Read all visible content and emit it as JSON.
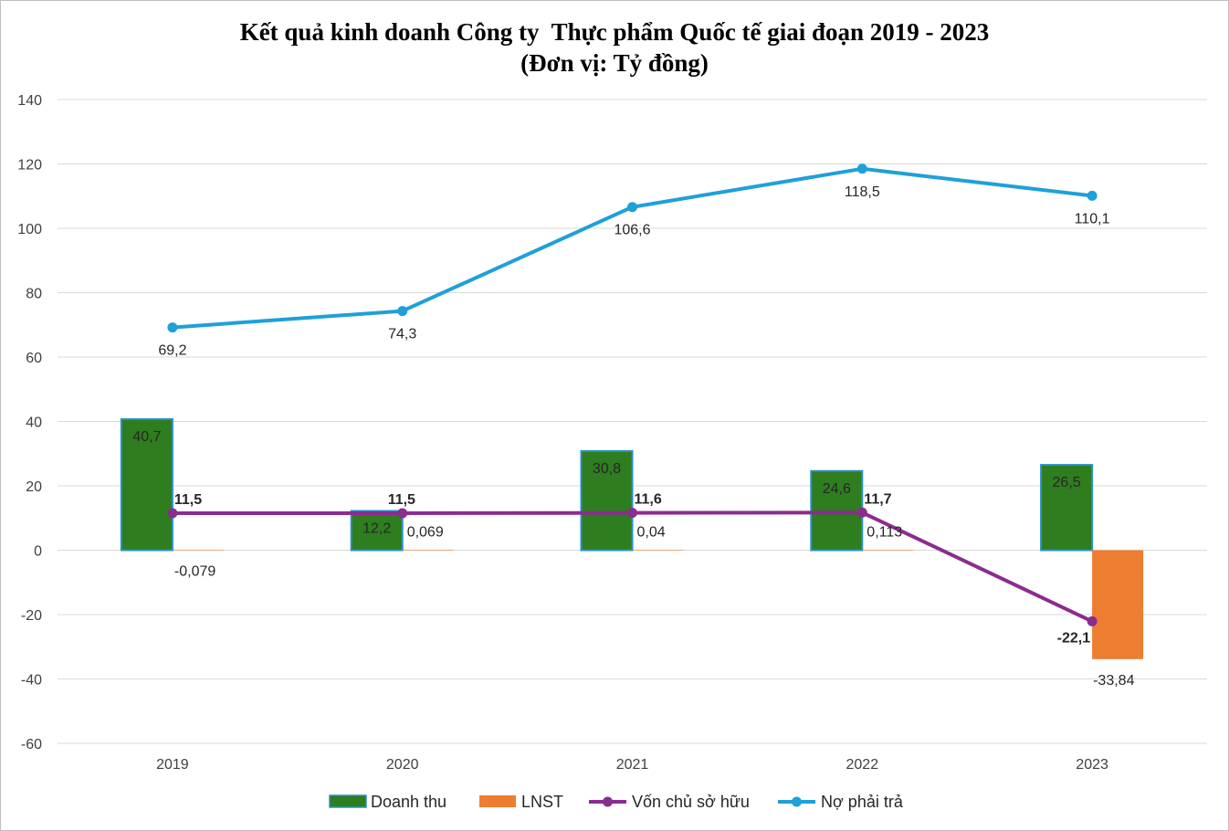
{
  "chart_data": {
    "type": "bar",
    "title": "Kết quả kinh doanh Công ty  Thực phẩm Quốc tế giai đoạn 2019 - 2023",
    "subtitle": "(Đơn vị: Tỷ đồng)",
    "categories": [
      "2019",
      "2020",
      "2021",
      "2022",
      "2023"
    ],
    "ylim": [
      -60,
      140
    ],
    "yticks": [
      -60,
      -40,
      -20,
      0,
      20,
      40,
      60,
      80,
      100,
      120,
      140
    ],
    "ytick_labels": [
      "-60",
      "-40",
      "-20",
      "0",
      "20",
      "40",
      "60",
      "80",
      "100",
      "120",
      "140"
    ],
    "grid": true,
    "legend_position": "bottom",
    "series": [
      {
        "name": "Doanh thu",
        "kind": "bar",
        "color": "#2e7d1f",
        "edge_color": "#2b8fc7",
        "values": [
          40.7,
          12.2,
          30.8,
          24.6,
          26.5
        ],
        "labels": [
          "40,7",
          "12,2",
          "30,8",
          "24,6",
          "26,5"
        ]
      },
      {
        "name": "LNST",
        "kind": "bar",
        "color": "#ed7d31",
        "values": [
          -0.079,
          0.069,
          0.04,
          0.113,
          -33.84
        ],
        "labels": [
          "-0,079",
          "0,069",
          "0,04",
          "0,113",
          "-33,84"
        ]
      },
      {
        "name": "Vốn chủ sở hữu",
        "kind": "line",
        "color": "#8b2c8f",
        "values": [
          11.5,
          11.5,
          11.6,
          11.7,
          -22.1
        ],
        "labels": [
          "11,5",
          "11,5",
          "11,6",
          "11,7",
          "-22,1"
        ]
      },
      {
        "name": "Nợ phải trả",
        "kind": "line",
        "color": "#1fa0d8",
        "values": [
          69.2,
          74.3,
          106.6,
          118.5,
          110.1
        ],
        "labels": [
          "69,2",
          "74,3",
          "106,6",
          "118,5",
          "110,1"
        ]
      }
    ]
  }
}
